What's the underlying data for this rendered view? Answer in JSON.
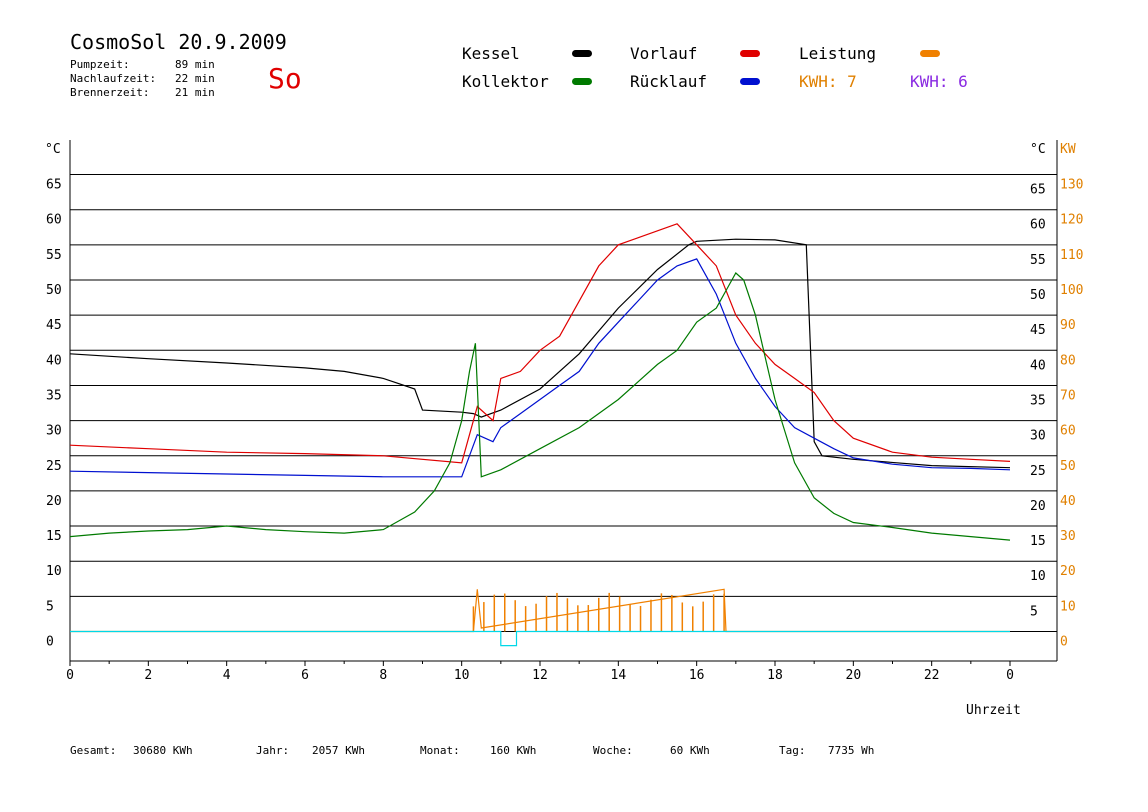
{
  "header": {
    "title": "CosmoSol 20.9.2009",
    "day": "So",
    "pump_label": "Pumpzeit:",
    "pump_value": "89 min",
    "nachlauf_label": "Nachlaufzeit:",
    "nachlauf_value": "22 min",
    "brenner_label": "Brennerzeit:",
    "brenner_value": "21 min"
  },
  "legend": {
    "kessel": "Kessel",
    "kollektor": "Kollektor",
    "vorlauf": "Vorlauf",
    "ruecklauf": "Rücklauf",
    "leistung": "Leistung",
    "kwh1": "KWH: 7",
    "kwh2": "KWH: 6",
    "colors": {
      "kessel": "#000000",
      "kollektor": "#007a00",
      "vorlauf": "#e00000",
      "ruecklauf": "#0010d0",
      "leistung": "#f08000",
      "kwh1": "#e08000",
      "kwh2": "#8a2be2",
      "pumpe": "#00d8e8"
    }
  },
  "footer": {
    "gesamt": "Gesamt:",
    "gesamt_v": "30680 KWh",
    "jahr": "Jahr:",
    "jahr_v": "2057 KWh",
    "monat": "Monat:",
    "monat_v": "160 KWh",
    "woche": "Woche:",
    "woche_v": "60 KWh",
    "tag": "Tag:",
    "tag_v": "7735 Wh"
  },
  "chart_data": {
    "type": "line",
    "xlabel": "Uhrzeit",
    "ylabel_left": "°C",
    "ylabel_right_temp": "°C",
    "ylabel_right_power": "KW",
    "xlim": [
      0,
      24
    ],
    "ylim": [
      -4,
      69
    ],
    "x_ticks": [
      "0",
      "2",
      "4",
      "6",
      "8",
      "10",
      "12",
      "14",
      "16",
      "18",
      "20",
      "22",
      "0"
    ],
    "y_ticks_left": [
      "0",
      "5",
      "10",
      "15",
      "20",
      "25",
      "30",
      "35",
      "40",
      "45",
      "50",
      "55",
      "60",
      "65"
    ],
    "y_ticks_right_temp": [
      "5",
      "10",
      "15",
      "20",
      "25",
      "30",
      "35",
      "40",
      "45",
      "50",
      "55",
      "60",
      "65"
    ],
    "y_ticks_right_power": [
      "0",
      "10",
      "20",
      "30",
      "40",
      "50",
      "60",
      "70",
      "80",
      "90",
      "100",
      "110",
      "120",
      "130"
    ],
    "grid": true,
    "series": [
      {
        "name": "Kessel",
        "color": "#000000",
        "x": [
          0,
          2,
          4,
          6,
          7,
          8,
          8.8,
          9,
          10,
          10.3,
          10.5,
          11,
          12,
          13,
          14,
          15,
          15.8,
          16,
          17,
          18,
          18.8,
          19,
          19.2,
          20,
          22,
          24
        ],
        "y": [
          39.5,
          38.8,
          38.2,
          37.5,
          37,
          36,
          34.5,
          31.5,
          31.2,
          31,
          30.5,
          31.5,
          34.5,
          39.5,
          46,
          51.5,
          55,
          55.5,
          55.8,
          55.7,
          55,
          27,
          25,
          24.5,
          23.6,
          23.3
        ]
      },
      {
        "name": "Vorlauf",
        "color": "#e00000",
        "x": [
          0,
          2,
          4,
          6,
          8,
          10,
          10.4,
          10.8,
          11,
          11.5,
          12,
          12.5,
          13,
          13.5,
          14,
          14.5,
          15,
          15.5,
          16,
          16.5,
          17,
          17.5,
          18,
          18.5,
          19,
          19.5,
          20,
          21,
          22,
          23,
          24
        ],
        "y": [
          26.5,
          26,
          25.5,
          25.3,
          25,
          24,
          32,
          30,
          36,
          37,
          40,
          42,
          47,
          52,
          55,
          56,
          57,
          58,
          55,
          52,
          45,
          41,
          38,
          36,
          34,
          30,
          27.5,
          25.5,
          24.8,
          24.5,
          24.2
        ]
      },
      {
        "name": "Rücklauf",
        "color": "#0010d0",
        "x": [
          0,
          2,
          4,
          6,
          8,
          10,
          10.4,
          10.8,
          11,
          11.5,
          12,
          12.5,
          13,
          13.5,
          14,
          14.5,
          15,
          15.5,
          16,
          16.5,
          17,
          17.5,
          18,
          18.5,
          19,
          19.5,
          20,
          21,
          22,
          23,
          24
        ],
        "y": [
          22.8,
          22.6,
          22.4,
          22.2,
          22,
          22,
          28,
          27,
          29,
          31,
          33,
          35,
          37,
          41,
          44,
          47,
          50,
          52,
          53,
          48,
          41,
          36,
          32,
          29,
          27.5,
          26,
          24.7,
          23.8,
          23.3,
          23.2,
          23
        ]
      },
      {
        "name": "Kollektor",
        "color": "#007a00",
        "x": [
          0,
          1,
          2,
          3,
          4,
          5,
          6,
          7,
          8,
          8.8,
          9.3,
          9.7,
          10,
          10.2,
          10.35,
          10.5,
          11,
          12,
          13,
          14,
          15,
          15.5,
          16,
          16.5,
          16.8,
          17,
          17.2,
          17.5,
          18,
          18.5,
          19,
          19.5,
          20,
          21,
          22,
          23,
          24
        ],
        "y": [
          13.5,
          14,
          14.3,
          14.5,
          15,
          14.5,
          14.2,
          14,
          14.5,
          17,
          20,
          24,
          30,
          37,
          41,
          22,
          23,
          26,
          29,
          33,
          38,
          40,
          44,
          46,
          49,
          51,
          50,
          45,
          33,
          24,
          19,
          16.8,
          15.5,
          14.8,
          14,
          13.5,
          13
        ]
      },
      {
        "name": "Leistung",
        "color": "#f08000",
        "x": [
          0,
          10.3,
          10.4,
          10.5,
          16.7,
          16.75,
          16.8,
          24
        ],
        "y": [
          0,
          0,
          6,
          0.5,
          6,
          0,
          0,
          0
        ]
      },
      {
        "name": "Pumpe",
        "color": "#00d8e8",
        "x": [
          0,
          11,
          11,
          11.4,
          11.4,
          24
        ],
        "y": [
          0,
          0,
          -2,
          -2,
          0,
          0
        ]
      }
    ],
    "power_bars": {
      "x_start": 10.3,
      "x_end": 16.7,
      "count": 25,
      "max": 5.5
    }
  }
}
